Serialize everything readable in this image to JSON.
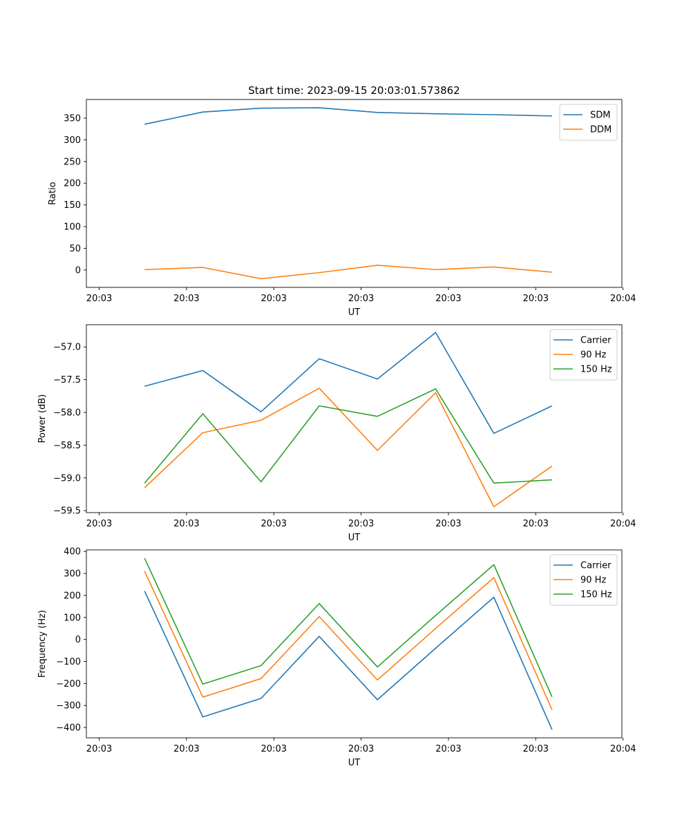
{
  "figure_title": "Start time: 2023-09-15 20:03:01.573862",
  "colors": {
    "blue": "#1f77b4",
    "orange": "#ff7f0e",
    "green": "#2ca02c",
    "axis": "#000000",
    "legend_border": "#cccccc"
  },
  "chart_data": [
    {
      "type": "line",
      "title": "Start time: 2023-09-15 20:03:01.573862",
      "xlabel": "UT",
      "ylabel": "Ratio",
      "x": [
        1,
        2,
        3,
        4,
        5,
        6,
        7,
        8
      ],
      "xlim": [
        0,
        9.2
      ],
      "xticks": [
        0.22,
        1.72,
        3.22,
        4.72,
        6.22,
        7.72,
        9.22
      ],
      "xtick_labels": [
        "20:03",
        "20:03",
        "20:03",
        "20:03",
        "20:03",
        "20:03",
        "20:04"
      ],
      "ylim": [
        -40,
        393
      ],
      "yticks": [
        0,
        50,
        100,
        150,
        200,
        250,
        300,
        350
      ],
      "ytick_labels": [
        "0",
        "50",
        "100",
        "150",
        "200",
        "250",
        "300",
        "350"
      ],
      "legend": "top-right",
      "series": [
        {
          "name": "SDM",
          "color": "#1f77b4",
          "values": [
            336,
            364,
            373,
            374,
            363,
            360,
            358,
            355
          ]
        },
        {
          "name": "DDM",
          "color": "#ff7f0e",
          "values": [
            1,
            6,
            -20,
            -6,
            11,
            1,
            7,
            -5
          ]
        }
      ]
    },
    {
      "type": "line",
      "title": "",
      "xlabel": "UT",
      "ylabel": "Power (dB)",
      "x": [
        1,
        2,
        3,
        4,
        5,
        6,
        7,
        8
      ],
      "xlim": [
        0,
        9.2
      ],
      "xticks": [
        0.22,
        1.72,
        3.22,
        4.72,
        6.22,
        7.72,
        9.22
      ],
      "xtick_labels": [
        "20:03",
        "20:03",
        "20:03",
        "20:03",
        "20:03",
        "20:03",
        "20:04"
      ],
      "ylim": [
        -59.53,
        -56.66
      ],
      "yticks": [
        -59.5,
        -59.0,
        -58.5,
        -58.0,
        -57.5,
        -57.0
      ],
      "ytick_labels": [
        "−59.5",
        "−59.0",
        "−58.5",
        "−58.0",
        "−57.5",
        "−57.0"
      ],
      "legend": "top-right",
      "series": [
        {
          "name": "Carrier",
          "color": "#1f77b4",
          "values": [
            -57.6,
            -57.36,
            -57.99,
            -57.18,
            -57.49,
            -56.78,
            -58.32,
            -57.9
          ]
        },
        {
          "name": "90 Hz",
          "color": "#ff7f0e",
          "values": [
            -59.15,
            -58.31,
            -58.12,
            -57.63,
            -58.58,
            -57.7,
            -59.44,
            -58.82
          ]
        },
        {
          "name": "150 Hz",
          "color": "#2ca02c",
          "values": [
            -59.08,
            -58.02,
            -59.06,
            -57.9,
            -58.06,
            -57.64,
            -59.08,
            -59.03
          ]
        }
      ]
    },
    {
      "type": "line",
      "title": "",
      "xlabel": "UT",
      "ylabel": "Frequency (Hz)",
      "x": [
        1,
        2,
        3,
        4,
        5,
        6,
        7,
        8
      ],
      "xlim": [
        0,
        9.2
      ],
      "xticks": [
        0.22,
        1.72,
        3.22,
        4.72,
        6.22,
        7.72,
        9.22
      ],
      "xtick_labels": [
        "20:03",
        "20:03",
        "20:03",
        "20:03",
        "20:03",
        "20:03",
        "20:04"
      ],
      "ylim": [
        -447,
        407
      ],
      "yticks": [
        -400,
        -300,
        -200,
        -100,
        0,
        100,
        200,
        300,
        400
      ],
      "ytick_labels": [
        "−400",
        "−300",
        "−200",
        "−100",
        "0",
        "100",
        "200",
        "300",
        "400"
      ],
      "legend": "top-right",
      "series": [
        {
          "name": "Carrier",
          "color": "#1f77b4",
          "values": [
            220,
            -352,
            -268,
            14,
            -274,
            -40,
            192,
            -410
          ]
        },
        {
          "name": "90 Hz",
          "color": "#ff7f0e",
          "values": [
            310,
            -262,
            -178,
            104,
            -184,
            50,
            281,
            -320
          ]
        },
        {
          "name": "150 Hz",
          "color": "#2ca02c",
          "values": [
            369,
            -203,
            -119,
            163,
            -125,
            109,
            340,
            -261
          ]
        }
      ]
    }
  ]
}
